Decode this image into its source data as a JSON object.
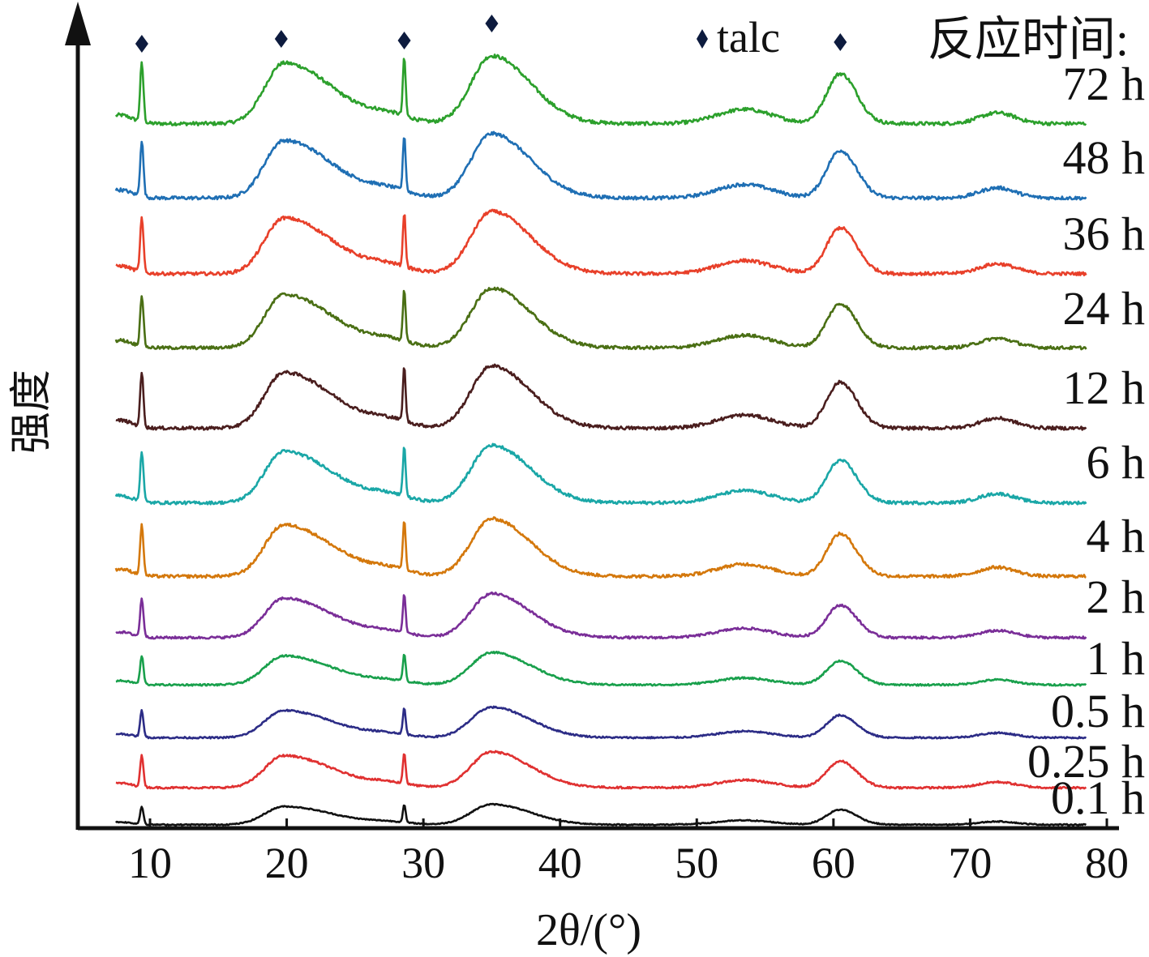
{
  "chart_data": {
    "type": "line",
    "xlabel": "2θ/(°)",
    "ylabel": "强度",
    "xlim": [
      5,
      80
    ],
    "x_ticks": [
      10,
      20,
      30,
      40,
      50,
      60,
      70,
      80
    ],
    "legend": {
      "title": "反应时间:",
      "marker_label": "talc",
      "marker_color": "#0d1b3e"
    },
    "talc_peaks": [
      9.4,
      19.6,
      28.6,
      35.0,
      60.5
    ],
    "series": [
      {
        "name": "72 h",
        "color": "#2ca02c",
        "scale": 1.0,
        "baseline": 0.07
      },
      {
        "name": "48 h",
        "color": "#1f6fb4",
        "scale": 0.95,
        "baseline": 0.05
      },
      {
        "name": "36 h",
        "color": "#e8402a",
        "scale": 0.92,
        "baseline": 0.07
      },
      {
        "name": "24 h",
        "color": "#4a6f14",
        "scale": 0.88,
        "baseline": 0.09
      },
      {
        "name": "12 h",
        "color": "#4a1e1e",
        "scale": 0.92,
        "baseline": 0.05
      },
      {
        "name": "6 h",
        "color": "#1aa7a7",
        "scale": 0.85,
        "baseline": 0.05
      },
      {
        "name": "4 h",
        "color": "#d4780c",
        "scale": 0.85,
        "baseline": 0.06
      },
      {
        "name": "2 h",
        "color": "#7a2e98",
        "scale": 0.65,
        "baseline": 0.05
      },
      {
        "name": "1 h",
        "color": "#19a04c",
        "scale": 0.48,
        "baseline": 0.05
      },
      {
        "name": "0.5 h",
        "color": "#2c2c86",
        "scale": 0.45,
        "baseline": 0.04
      },
      {
        "name": "0.25 h",
        "color": "#e03131",
        "scale": 0.53,
        "baseline": 0.05
      },
      {
        "name": "0.1 h",
        "color": "#111111",
        "scale": 0.3,
        "baseline": 0.03
      }
    ],
    "peaks": [
      {
        "x": 9.4,
        "height": 0.82,
        "width": 0.12
      },
      {
        "x": 28.6,
        "height": 0.82,
        "width": 0.1
      },
      {
        "x": 19.8,
        "height": 0.85,
        "width": 1.4,
        "tail": 3.5
      },
      {
        "x": 35.0,
        "height": 0.95,
        "width": 1.5,
        "tail": 2.8
      },
      {
        "x": 60.5,
        "height": 0.7,
        "width": 1.0,
        "tail": 1.2
      },
      {
        "x": 53.5,
        "height": 0.2,
        "width": 2.0
      },
      {
        "x": 72.0,
        "height": 0.15,
        "width": 1.3
      },
      {
        "x": 7.8,
        "height": 0.12,
        "width": 0.9
      },
      {
        "x": 27.5,
        "height": 0.1,
        "width": 1.5
      }
    ]
  }
}
